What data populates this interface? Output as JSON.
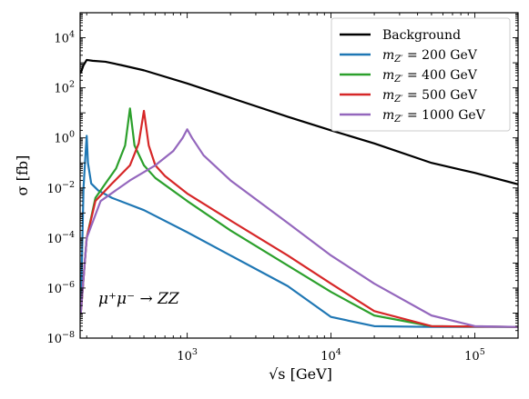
{
  "chart_data": {
    "type": "line",
    "xscale": "log",
    "yscale": "log",
    "xlim": [
      180,
      200000
    ],
    "ylim": [
      1e-08,
      100000
    ],
    "xlabel": "√s [GeV]",
    "ylabel": "σ [fb]",
    "x_ticks": [
      {
        "value": 1000,
        "base": "10",
        "exp": "3"
      },
      {
        "value": 10000,
        "base": "10",
        "exp": "4"
      },
      {
        "value": 100000,
        "base": "10",
        "exp": "5"
      }
    ],
    "y_ticks": [
      {
        "value": 1e-08,
        "base": "10",
        "exp": "−8"
      },
      {
        "value": 1e-06,
        "base": "10",
        "exp": "−6"
      },
      {
        "value": 0.0001,
        "base": "10",
        "exp": "−4"
      },
      {
        "value": 0.01,
        "base": "10",
        "exp": "−2"
      },
      {
        "value": 1,
        "base": "10",
        "exp": "0"
      },
      {
        "value": 100,
        "base": "10",
        "exp": "2"
      },
      {
        "value": 10000,
        "base": "10",
        "exp": "4"
      }
    ],
    "annotation": "μ⁺μ⁻ → ZZ",
    "legend_position": "top-right",
    "grid": false,
    "series": [
      {
        "name": "Background",
        "color": "#000000",
        "points": [
          [
            182,
            400
          ],
          [
            190,
            800
          ],
          [
            200,
            1300
          ],
          [
            220,
            1200
          ],
          [
            270,
            1100
          ],
          [
            350,
            800
          ],
          [
            500,
            500
          ],
          [
            1000,
            150
          ],
          [
            2000,
            40
          ],
          [
            5000,
            7
          ],
          [
            10000,
            2
          ],
          [
            20000,
            0.6
          ],
          [
            50000,
            0.1
          ],
          [
            100000,
            0.04
          ],
          [
            200000,
            0.014
          ]
        ]
      },
      {
        "name": "m_Z′ = 200 GeV",
        "legend_var": "m",
        "legend_sub": "Z′",
        "legend_rest": " = 200 GeV",
        "color": "#1f77b4",
        "points": [
          [
            182,
            1e-07
          ],
          [
            190,
            0.01
          ],
          [
            196,
            0.2
          ],
          [
            200,
            1.2
          ],
          [
            204,
            0.1
          ],
          [
            215,
            0.015
          ],
          [
            240,
            0.008
          ],
          [
            300,
            0.004
          ],
          [
            500,
            0.0013
          ],
          [
            1000,
            0.00017
          ],
          [
            2000,
            2e-05
          ],
          [
            5000,
            1.2e-06
          ],
          [
            10000,
            7e-08
          ],
          [
            20000,
            3e-08
          ],
          [
            50000,
            2.8e-08
          ],
          [
            200000,
            2.8e-08
          ]
        ]
      },
      {
        "name": "m_Z′ = 400 GeV",
        "legend_var": "m",
        "legend_sub": "Z′",
        "legend_rest": " = 400 GeV",
        "color": "#2ca02c",
        "points": [
          [
            182,
            1e-07
          ],
          [
            200,
            0.0001
          ],
          [
            230,
            0.004
          ],
          [
            270,
            0.015
          ],
          [
            320,
            0.06
          ],
          [
            370,
            0.5
          ],
          [
            400,
            15
          ],
          [
            430,
            0.5
          ],
          [
            500,
            0.08
          ],
          [
            600,
            0.025
          ],
          [
            1000,
            0.003
          ],
          [
            2000,
            0.0002
          ],
          [
            5000,
            8e-06
          ],
          [
            10000,
            7e-07
          ],
          [
            20000,
            8e-08
          ],
          [
            50000,
            3e-08
          ],
          [
            200000,
            2.8e-08
          ]
        ]
      },
      {
        "name": "m_Z′ = 500 GeV",
        "legend_var": "m",
        "legend_sub": "Z′",
        "legend_rest": " = 500 GeV",
        "color": "#d62728",
        "points": [
          [
            182,
            1e-07
          ],
          [
            200,
            0.0001
          ],
          [
            230,
            0.003
          ],
          [
            300,
            0.015
          ],
          [
            400,
            0.08
          ],
          [
            460,
            0.6
          ],
          [
            500,
            12
          ],
          [
            540,
            0.5
          ],
          [
            600,
            0.08
          ],
          [
            700,
            0.03
          ],
          [
            1000,
            0.006
          ],
          [
            2000,
            0.0005
          ],
          [
            5000,
            2e-05
          ],
          [
            10000,
            1.5e-06
          ],
          [
            20000,
            1.2e-07
          ],
          [
            50000,
            3e-08
          ],
          [
            200000,
            2.8e-08
          ]
        ]
      },
      {
        "name": "m_Z′ = 1000 GeV",
        "legend_var": "m",
        "legend_sub": "Z′",
        "legend_rest": " = 1000 GeV",
        "color": "#9467bd",
        "points": [
          [
            182,
            1e-07
          ],
          [
            200,
            0.0001
          ],
          [
            250,
            0.003
          ],
          [
            400,
            0.02
          ],
          [
            600,
            0.08
          ],
          [
            800,
            0.3
          ],
          [
            930,
            1
          ],
          [
            1000,
            2.2
          ],
          [
            1080,
            1
          ],
          [
            1300,
            0.2
          ],
          [
            2000,
            0.02
          ],
          [
            5000,
            0.0004
          ],
          [
            10000,
            2e-05
          ],
          [
            20000,
            1.5e-06
          ],
          [
            50000,
            8e-08
          ],
          [
            100000,
            3e-08
          ],
          [
            200000,
            2.8e-08
          ]
        ]
      }
    ]
  }
}
